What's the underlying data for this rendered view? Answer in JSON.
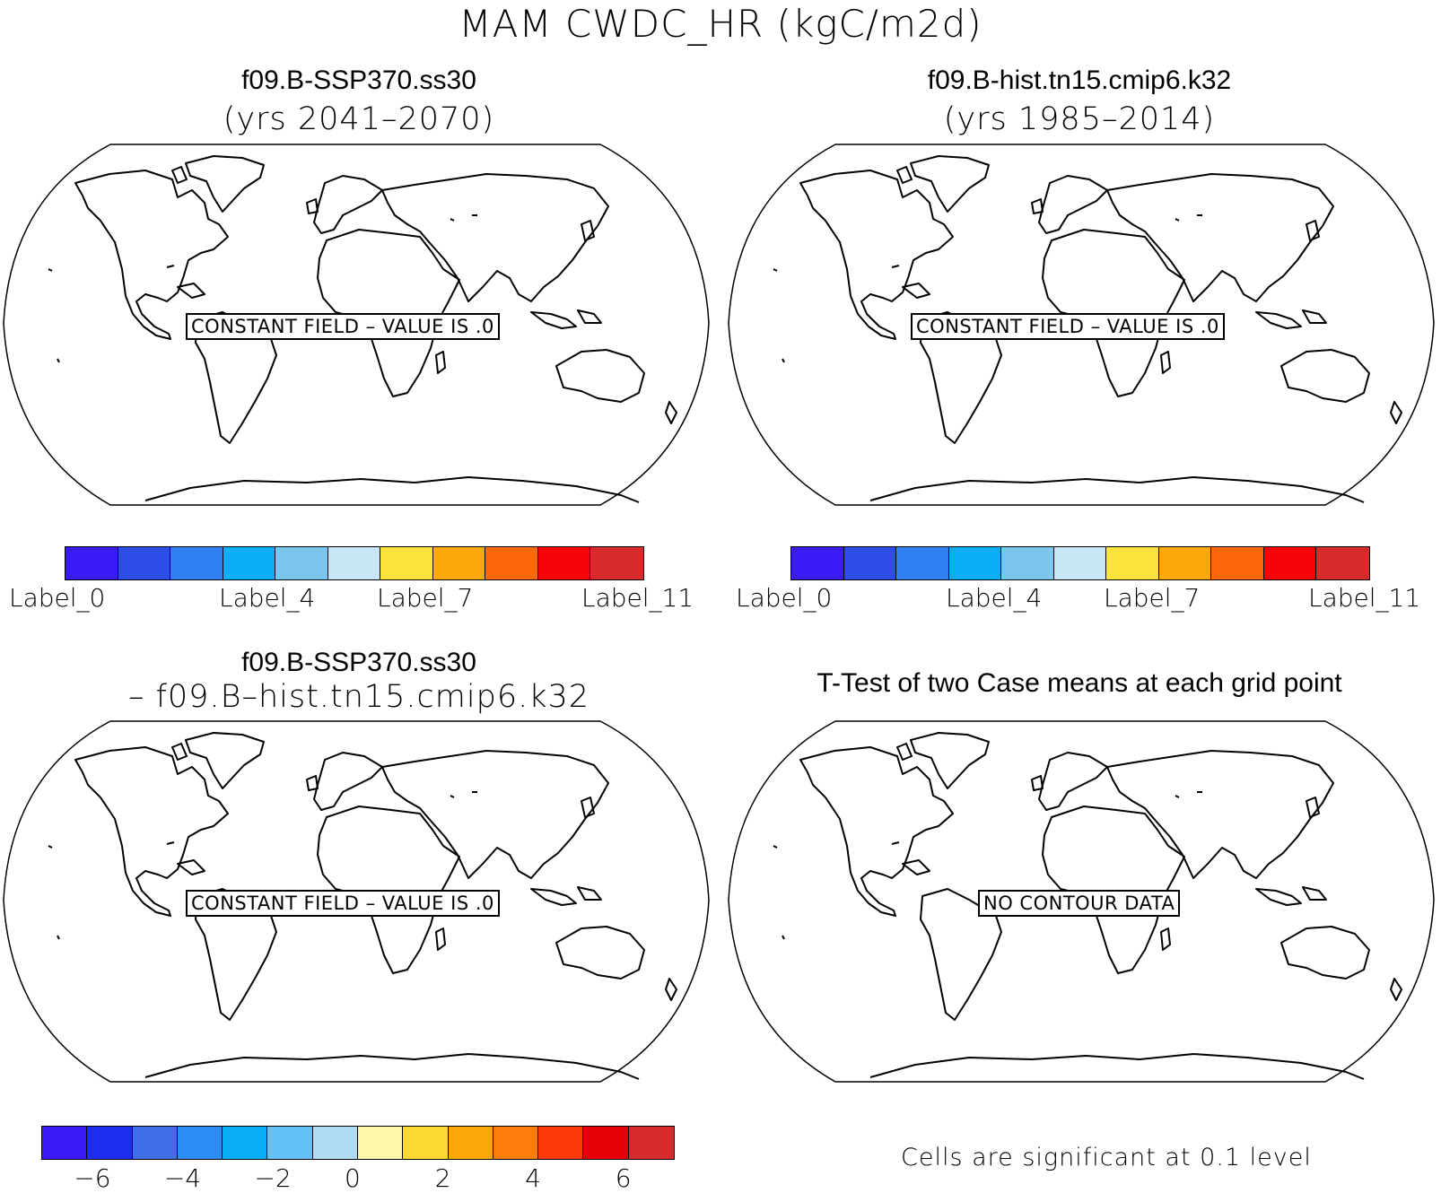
{
  "page_title": "MAM CWDC_HR (kgC/m2d)",
  "panels": [
    {
      "title": "f09.B-SSP370.ss30",
      "subtitle": "(yrs 2041–2070)",
      "message": "CONSTANT FIELD – VALUE IS .0"
    },
    {
      "title": "f09.B-hist.tn15.cmip6.k32",
      "subtitle": "(yrs 1985–2014)",
      "message": "CONSTANT FIELD – VALUE IS .0"
    },
    {
      "title": "f09.B-SSP370.ss30",
      "subtitle": "– f09.B–hist.tn15.cmip6.k32",
      "message": "CONSTANT FIELD – VALUE IS .0"
    },
    {
      "title": "T-Test of two Case means at each grid point",
      "message": "NO CONTOUR DATA"
    }
  ],
  "colorbar_top": {
    "colors": [
      "#3b1bf5",
      "#2d4ee6",
      "#2f7ff2",
      "#0aaef7",
      "#7ac6ef",
      "#c9e6f7",
      "#fce33b",
      "#fca70a",
      "#fc680a",
      "#f5020a",
      "#d52b2b"
    ],
    "labels": [
      "Label_0",
      "Label_4",
      "Label_7",
      "Label_11"
    ]
  },
  "colorbar_bottom": {
    "colors": [
      "#3b1bf5",
      "#1c2ded",
      "#3f6fe6",
      "#2a8cf5",
      "#0aaef7",
      "#63c2f5",
      "#b0dcf3",
      "#fcf8a8",
      "#fcd930",
      "#fca70a",
      "#fc7d0a",
      "#fc3a0a",
      "#e40006",
      "#d52b2b"
    ],
    "labels": [
      "−6",
      "−4",
      "−2",
      "0",
      "2",
      "4",
      "6"
    ]
  },
  "significance_note": "Cells are significant at 0.1 level"
}
